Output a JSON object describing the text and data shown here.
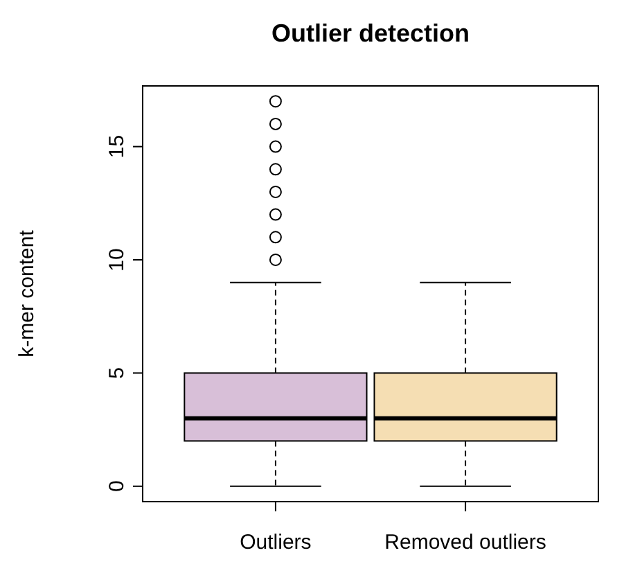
{
  "chart_data": {
    "type": "box",
    "title": "Outlier detection",
    "ylabel": "k-mer content",
    "categories": [
      "Outliers",
      "Removed outliers"
    ],
    "colors": [
      "#d8bfd8",
      "#f5deb3"
    ],
    "boxes": [
      {
        "low": 0,
        "q1": 2,
        "median": 3,
        "q3": 5,
        "high": 9,
        "outliers": [
          10,
          11,
          12,
          13,
          14,
          15,
          16,
          17
        ]
      },
      {
        "low": 0,
        "q1": 2,
        "median": 3,
        "q3": 5,
        "high": 9
      }
    ],
    "ylim": [
      -0.68,
      17.68
    ],
    "yticks": [
      0,
      5,
      10,
      15
    ],
    "grid": false
  }
}
